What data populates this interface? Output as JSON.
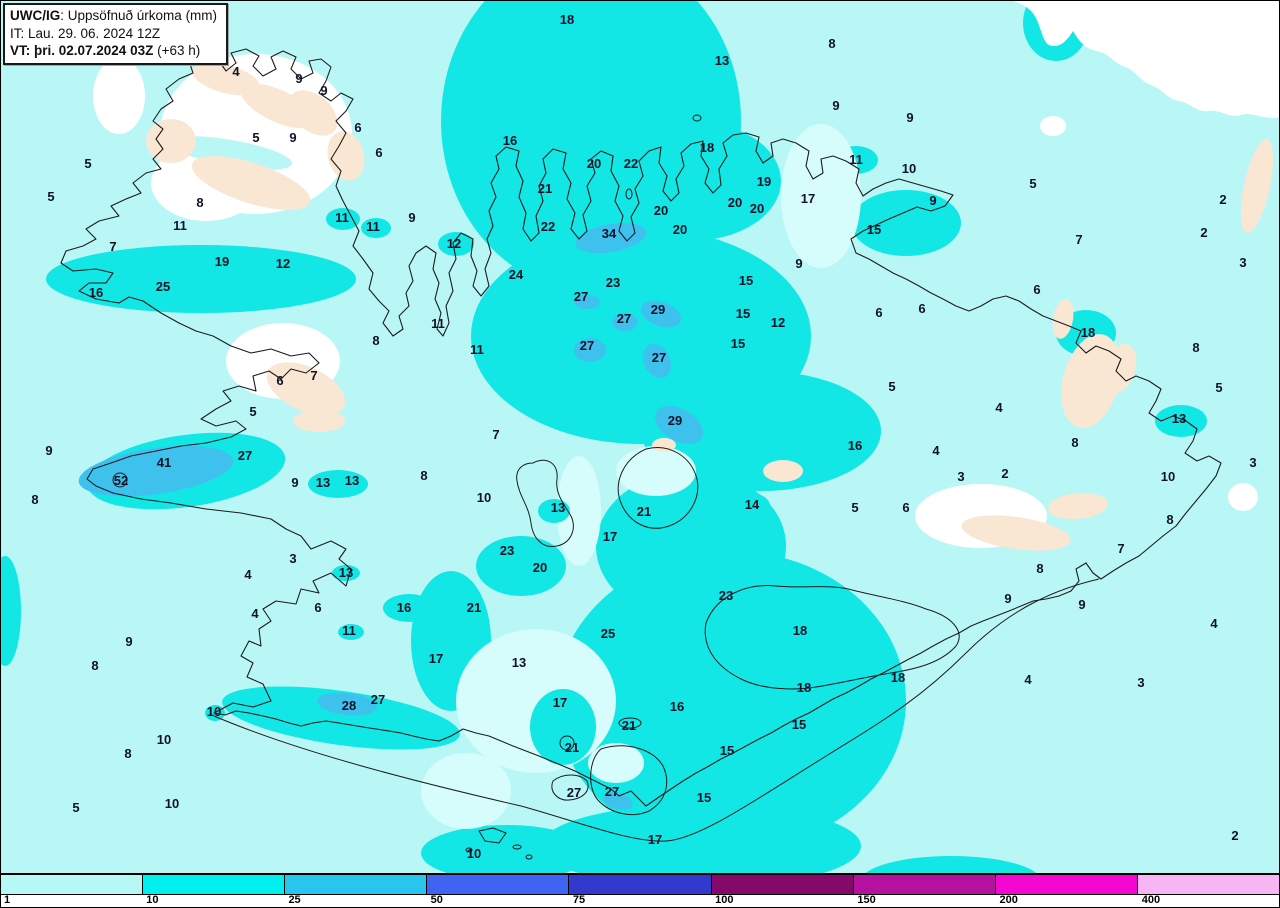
{
  "header": {
    "model": "UWC/IG",
    "title_suffix": ": Uppsöfnuð úrkoma (mm)",
    "it_line": "IT: Lau. 29. 06. 2024 12Z",
    "vt_bold": "VT: þri. 02.07.2024 03Z",
    "vt_suffix": " (+63 h)"
  },
  "colorbar": {
    "unit": "mm",
    "segments": [
      {
        "label": "1",
        "color": "#b6f8f6"
      },
      {
        "label": "10",
        "color": "#00efef"
      },
      {
        "label": "25",
        "color": "#28c5ef"
      },
      {
        "label": "50",
        "color": "#3f63f2"
      },
      {
        "label": "75",
        "color": "#3338cf"
      },
      {
        "label": "100",
        "color": "#85096a"
      },
      {
        "label": "150",
        "color": "#b511a0"
      },
      {
        "label": "200",
        "color": "#f307d1"
      },
      {
        "label": "400",
        "color": "#f8b5f4"
      }
    ]
  },
  "map": {
    "palette": {
      "ocean": "#b9f7f6",
      "light": "#d6fdfc",
      "cyan": "#12e7e5",
      "sky": "#3fc1ee",
      "white": "#ffffff",
      "peach": "#f9e7d4",
      "ink": "#1c1c1c"
    },
    "stations": [
      [
        5,
        30,
        61
      ],
      [
        4,
        235,
        71
      ],
      [
        9,
        298,
        78
      ],
      [
        9,
        323,
        90
      ],
      [
        6,
        357,
        127
      ],
      [
        5,
        255,
        137
      ],
      [
        9,
        292,
        137
      ],
      [
        6,
        378,
        152
      ],
      [
        5,
        87,
        163
      ],
      [
        5,
        50,
        196
      ],
      [
        8,
        199,
        202
      ],
      [
        11,
        179,
        225
      ],
      [
        11,
        341,
        217
      ],
      [
        11,
        372,
        226
      ],
      [
        9,
        411,
        217
      ],
      [
        7,
        112,
        246
      ],
      [
        19,
        221,
        261
      ],
      [
        12,
        282,
        263
      ],
      [
        25,
        162,
        286
      ],
      [
        16,
        95,
        292
      ],
      [
        18,
        566,
        19
      ],
      [
        13,
        721,
        60
      ],
      [
        8,
        831,
        43
      ],
      [
        9,
        835,
        105
      ],
      [
        16,
        509,
        140
      ],
      [
        18,
        706,
        147
      ],
      [
        20,
        593,
        163
      ],
      [
        22,
        630,
        163
      ],
      [
        11,
        855,
        159
      ],
      [
        19,
        763,
        181
      ],
      [
        21,
        544,
        188
      ],
      [
        17,
        807,
        198
      ],
      [
        20,
        734,
        202
      ],
      [
        20,
        756,
        208
      ],
      [
        20,
        660,
        210
      ],
      [
        22,
        547,
        226
      ],
      [
        34,
        608,
        233
      ],
      [
        20,
        679,
        229
      ],
      [
        12,
        453,
        243
      ],
      [
        24,
        515,
        274
      ],
      [
        23,
        612,
        282
      ],
      [
        27,
        580,
        296
      ],
      [
        9,
        798,
        263
      ],
      [
        15,
        745,
        280
      ],
      [
        9,
        909,
        117
      ],
      [
        10,
        908,
        168
      ],
      [
        5,
        1032,
        183
      ],
      [
        9,
        932,
        200
      ],
      [
        15,
        873,
        229
      ],
      [
        2,
        1222,
        199
      ],
      [
        2,
        1203,
        232
      ],
      [
        3,
        1242,
        262
      ],
      [
        7,
        1078,
        239
      ],
      [
        6,
        1036,
        289
      ],
      [
        8,
        375,
        340
      ],
      [
        6,
        279,
        380
      ],
      [
        7,
        313,
        375
      ],
      [
        5,
        252,
        411
      ],
      [
        9,
        48,
        450
      ],
      [
        27,
        244,
        455
      ],
      [
        41,
        163,
        462
      ],
      [
        52,
        120,
        480
      ],
      [
        9,
        294,
        482
      ],
      [
        13,
        322,
        482
      ],
      [
        13,
        351,
        480
      ],
      [
        8,
        423,
        475
      ],
      [
        8,
        34,
        499
      ],
      [
        3,
        292,
        558
      ],
      [
        13,
        345,
        572
      ],
      [
        4,
        247,
        574
      ],
      [
        11,
        437,
        323
      ],
      [
        11,
        476,
        349
      ],
      [
        29,
        657,
        309
      ],
      [
        27,
        623,
        318
      ],
      [
        15,
        742,
        313
      ],
      [
        12,
        777,
        322
      ],
      [
        27,
        586,
        345
      ],
      [
        15,
        737,
        343
      ],
      [
        27,
        658,
        357
      ],
      [
        29,
        674,
        420
      ],
      [
        7,
        495,
        434
      ],
      [
        16,
        854,
        445
      ],
      [
        10,
        483,
        497
      ],
      [
        13,
        557,
        507
      ],
      [
        14,
        751,
        504
      ],
      [
        21,
        643,
        511
      ],
      [
        5,
        854,
        507
      ],
      [
        17,
        609,
        536
      ],
      [
        23,
        506,
        550
      ],
      [
        20,
        539,
        567
      ],
      [
        6,
        878,
        312
      ],
      [
        6,
        921,
        308
      ],
      [
        18,
        1087,
        332
      ],
      [
        8,
        1195,
        347
      ],
      [
        5,
        891,
        386
      ],
      [
        5,
        1218,
        387
      ],
      [
        4,
        998,
        407
      ],
      [
        13,
        1178,
        418
      ],
      [
        8,
        1074,
        442
      ],
      [
        4,
        935,
        450
      ],
      [
        3,
        1252,
        462
      ],
      [
        2,
        1004,
        473
      ],
      [
        3,
        960,
        476
      ],
      [
        10,
        1167,
        476
      ],
      [
        6,
        905,
        507
      ],
      [
        8,
        1169,
        519
      ],
      [
        7,
        1120,
        548
      ],
      [
        8,
        1039,
        568
      ],
      [
        4,
        254,
        613
      ],
      [
        6,
        317,
        607
      ],
      [
        16,
        403,
        607
      ],
      [
        11,
        348,
        630
      ],
      [
        9,
        128,
        641
      ],
      [
        8,
        94,
        665
      ],
      [
        27,
        377,
        699
      ],
      [
        28,
        348,
        705
      ],
      [
        10,
        213,
        711
      ],
      [
        10,
        163,
        739
      ],
      [
        8,
        127,
        753
      ],
      [
        10,
        171,
        803
      ],
      [
        5,
        75,
        807
      ],
      [
        21,
        473,
        607
      ],
      [
        23,
        725,
        595
      ],
      [
        25,
        607,
        633
      ],
      [
        17,
        435,
        658
      ],
      [
        13,
        518,
        662
      ],
      [
        18,
        799,
        630
      ],
      [
        18,
        803,
        687
      ],
      [
        17,
        559,
        702
      ],
      [
        16,
        676,
        706
      ],
      [
        21,
        628,
        725
      ],
      [
        15,
        798,
        724
      ],
      [
        21,
        571,
        747
      ],
      [
        15,
        726,
        750
      ],
      [
        27,
        573,
        792
      ],
      [
        27,
        611,
        791
      ],
      [
        15,
        703,
        797
      ],
      [
        17,
        654,
        839
      ],
      [
        10,
        473,
        853
      ],
      [
        9,
        1007,
        598
      ],
      [
        9,
        1081,
        604
      ],
      [
        4,
        1213,
        623
      ],
      [
        18,
        897,
        677
      ],
      [
        4,
        1027,
        679
      ],
      [
        3,
        1140,
        682
      ],
      [
        2,
        1234,
        835
      ]
    ]
  }
}
